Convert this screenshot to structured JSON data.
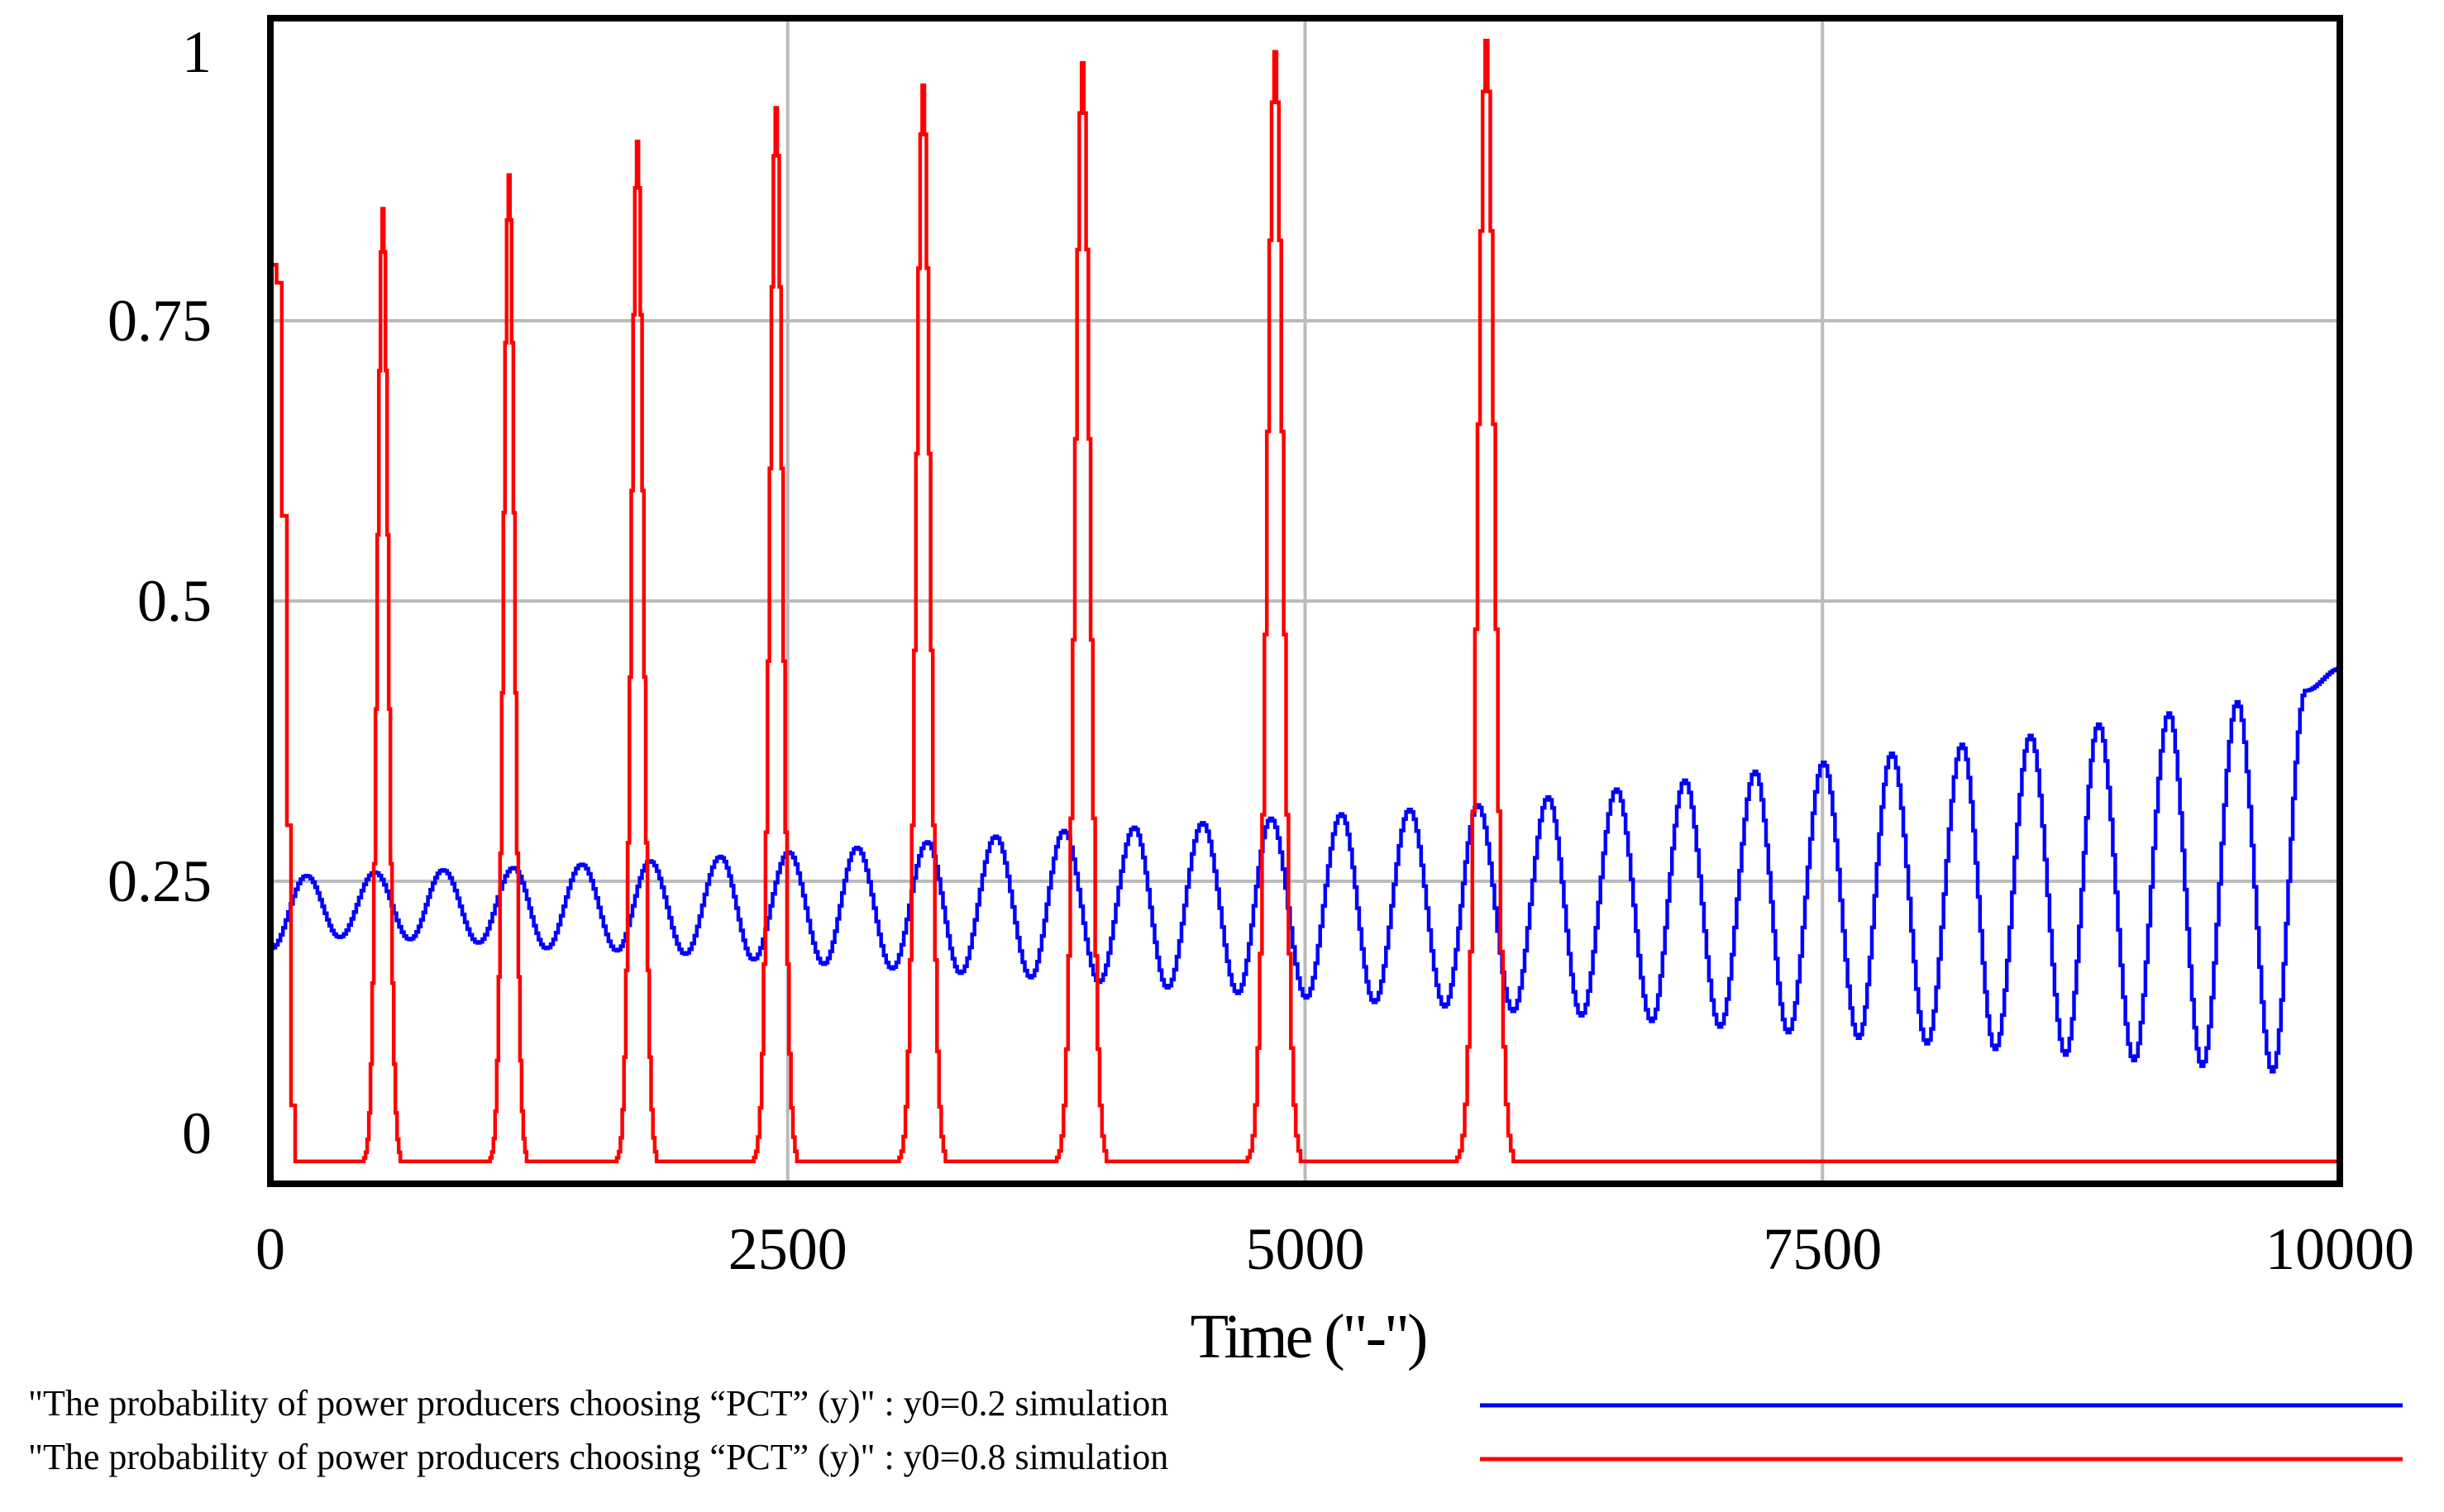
{
  "chart_data": {
    "type": "line",
    "title": "",
    "xlabel": "Time (\"-\")",
    "ylabel": "",
    "xlim": [
      0,
      10000
    ],
    "ylim": [
      -0.02,
      1.02
    ],
    "grid": true,
    "x_ticks": [
      0,
      2500,
      5000,
      7500,
      10000
    ],
    "x_tick_labels": [
      "0",
      "2500",
      "5000",
      "7500",
      "10000"
    ],
    "y_ticks": [
      0,
      0.25,
      0.5,
      0.75,
      1
    ],
    "y_tick_labels": [
      "0",
      "0.25",
      "0.5",
      "0.75",
      "1"
    ],
    "legend_position": "bottom",
    "series": [
      {
        "name": "\"The probability of power producers choosing “PCT” (y)\" : y0=0.2 simulation",
        "color": "#0000ff",
        "description": "Oscillation with period ~333 and slowly growing amplitude",
        "peaks": [
          {
            "x": 170,
            "y": 0.255
          },
          {
            "x": 500,
            "y": 0.258
          },
          {
            "x": 830,
            "y": 0.26
          },
          {
            "x": 1170,
            "y": 0.262
          },
          {
            "x": 1500,
            "y": 0.265
          },
          {
            "x": 1830,
            "y": 0.268
          },
          {
            "x": 2170,
            "y": 0.272
          },
          {
            "x": 2500,
            "y": 0.276
          },
          {
            "x": 2830,
            "y": 0.28
          },
          {
            "x": 3170,
            "y": 0.285
          },
          {
            "x": 3500,
            "y": 0.29
          },
          {
            "x": 3830,
            "y": 0.295
          },
          {
            "x": 4170,
            "y": 0.298
          },
          {
            "x": 4500,
            "y": 0.302
          },
          {
            "x": 4830,
            "y": 0.306
          },
          {
            "x": 5170,
            "y": 0.31
          },
          {
            "x": 5500,
            "y": 0.314
          },
          {
            "x": 5830,
            "y": 0.318
          },
          {
            "x": 6170,
            "y": 0.325
          },
          {
            "x": 6500,
            "y": 0.332
          },
          {
            "x": 6830,
            "y": 0.34
          },
          {
            "x": 7170,
            "y": 0.348
          },
          {
            "x": 7500,
            "y": 0.356
          },
          {
            "x": 7830,
            "y": 0.364
          },
          {
            "x": 8170,
            "y": 0.372
          },
          {
            "x": 8500,
            "y": 0.38
          },
          {
            "x": 8830,
            "y": 0.39
          },
          {
            "x": 9170,
            "y": 0.4
          },
          {
            "x": 9500,
            "y": 0.41
          },
          {
            "x": 9830,
            "y": 0.42
          }
        ],
        "troughs": [
          {
            "x": 0,
            "y": 0.19
          },
          {
            "x": 330,
            "y": 0.2
          },
          {
            "x": 670,
            "y": 0.198
          },
          {
            "x": 1000,
            "y": 0.195
          },
          {
            "x": 1330,
            "y": 0.19
          },
          {
            "x": 1670,
            "y": 0.188
          },
          {
            "x": 2000,
            "y": 0.185
          },
          {
            "x": 2330,
            "y": 0.18
          },
          {
            "x": 2670,
            "y": 0.176
          },
          {
            "x": 3000,
            "y": 0.172
          },
          {
            "x": 3330,
            "y": 0.168
          },
          {
            "x": 3670,
            "y": 0.164
          },
          {
            "x": 4000,
            "y": 0.16
          },
          {
            "x": 4330,
            "y": 0.155
          },
          {
            "x": 4670,
            "y": 0.15
          },
          {
            "x": 5000,
            "y": 0.146
          },
          {
            "x": 5330,
            "y": 0.142
          },
          {
            "x": 5670,
            "y": 0.138
          },
          {
            "x": 6000,
            "y": 0.134
          },
          {
            "x": 6330,
            "y": 0.13
          },
          {
            "x": 6670,
            "y": 0.125
          },
          {
            "x": 7000,
            "y": 0.12
          },
          {
            "x": 7330,
            "y": 0.115
          },
          {
            "x": 7670,
            "y": 0.11
          },
          {
            "x": 8000,
            "y": 0.105
          },
          {
            "x": 8330,
            "y": 0.1
          },
          {
            "x": 8670,
            "y": 0.095
          },
          {
            "x": 9000,
            "y": 0.09
          },
          {
            "x": 9330,
            "y": 0.085
          },
          {
            "x": 9670,
            "y": 0.08
          }
        ],
        "end_value": {
          "x": 10000,
          "y": 0.44
        }
      },
      {
        "name": "\"The probability of power producers choosing “PCT” (y)\" : y0=0.8 simulation",
        "color": "#ff0000",
        "description": "Starts at 0.8, drops to 0, then sharp pulses of growing height until ~6000, then stays at 0",
        "start_value": {
          "x": 0,
          "y": 0.8
        },
        "spikes": [
          {
            "x": 540,
            "y": 0.85
          },
          {
            "x": 1150,
            "y": 0.88
          },
          {
            "x": 1770,
            "y": 0.91
          },
          {
            "x": 2440,
            "y": 0.94
          },
          {
            "x": 3150,
            "y": 0.96
          },
          {
            "x": 3920,
            "y": 0.98
          },
          {
            "x": 4850,
            "y": 0.99
          },
          {
            "x": 5870,
            "y": 1.0
          }
        ],
        "spike_half_width": [
          55,
          55,
          60,
          65,
          70,
          75,
          80,
          85
        ],
        "baseline_after": {
          "x": 6070,
          "y": 0
        }
      }
    ]
  }
}
